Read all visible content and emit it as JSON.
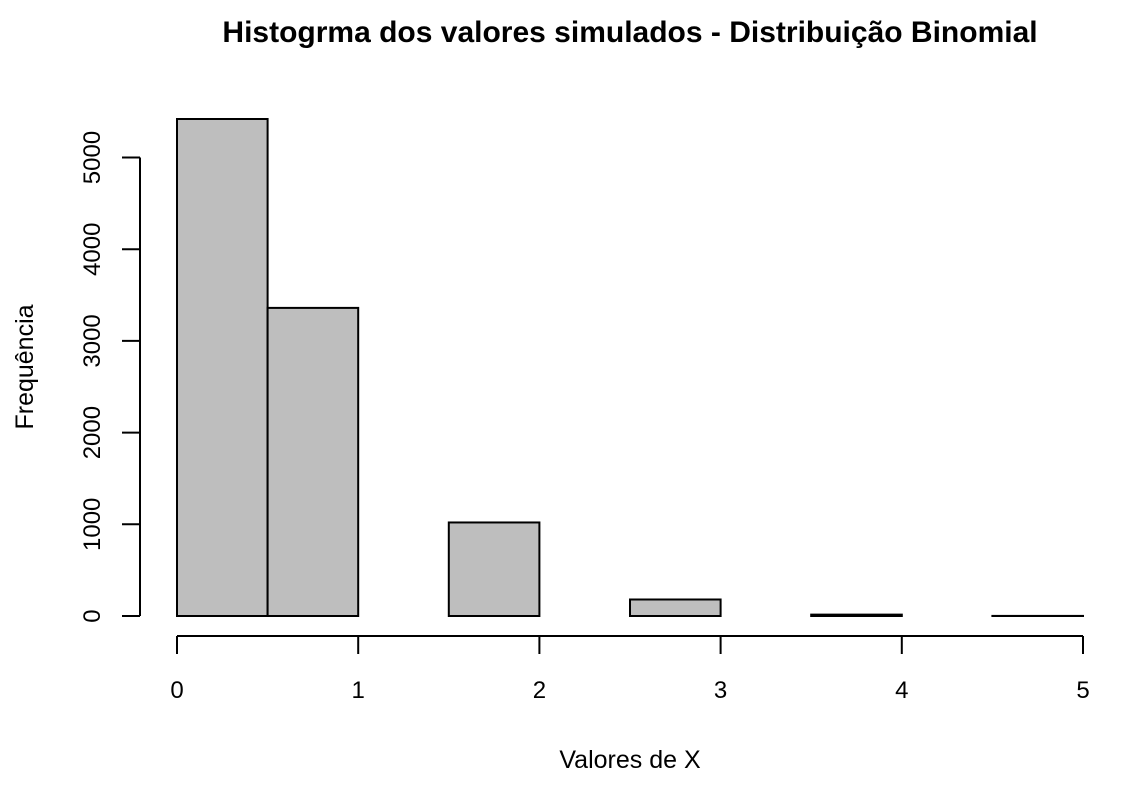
{
  "chart_data": {
    "type": "bar",
    "title": "Histogrma dos valores simulados - Distribuição Binomial",
    "xlabel": "Valores de X",
    "ylabel": "Frequência",
    "bins": [
      {
        "start": 0.0,
        "end": 0.5,
        "value": 5420
      },
      {
        "start": 0.5,
        "end": 1.0,
        "value": 3360
      },
      {
        "start": 1.0,
        "end": 1.5,
        "value": 0
      },
      {
        "start": 1.5,
        "end": 2.0,
        "value": 1020
      },
      {
        "start": 2.0,
        "end": 2.5,
        "value": 0
      },
      {
        "start": 2.5,
        "end": 3.0,
        "value": 180
      },
      {
        "start": 3.0,
        "end": 3.5,
        "value": 0
      },
      {
        "start": 3.5,
        "end": 4.0,
        "value": 15
      },
      {
        "start": 4.0,
        "end": 4.5,
        "value": 0
      },
      {
        "start": 4.5,
        "end": 5.0,
        "value": 1
      }
    ],
    "xlim": [
      0,
      5
    ],
    "ylim": [
      0,
      5420
    ],
    "x_ticks": [
      "0",
      "1",
      "2",
      "3",
      "4",
      "5"
    ],
    "y_ticks": [
      "0",
      "1000",
      "2000",
      "3000",
      "4000",
      "5000"
    ],
    "grid": false,
    "colors": {
      "bar_fill": "#bebebe",
      "bar_stroke": "#000000"
    }
  }
}
